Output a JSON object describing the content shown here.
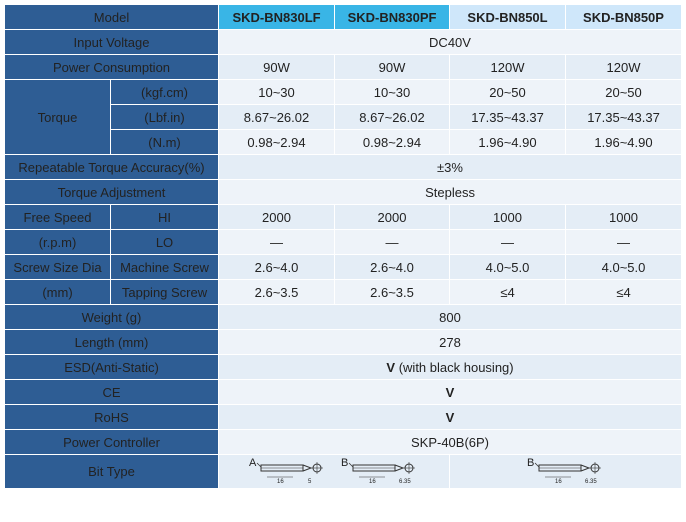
{
  "models": [
    "SKD-BN830LF",
    "SKD-BN830PF",
    "SKD-BN850L",
    "SKD-BN850P"
  ],
  "labels": {
    "model": "Model",
    "input_voltage": "Input Voltage",
    "power_consumption": "Power Consumption",
    "torque": "Torque",
    "torque_kgf": "(kgf.cm)",
    "torque_lbf": "(Lbf.in)",
    "torque_nm": "(N.m)",
    "accuracy": "Repeatable Torque Accuracy(%)",
    "adjustment": "Torque Adjustment",
    "free_speed": "Free Speed",
    "rpm": "(r.p.m)",
    "hi": "HI",
    "lo": "LO",
    "screw_size": "Screw Size Dia",
    "mm": "(mm)",
    "machine_screw": "Machine Screw",
    "tapping_screw": "Tapping Screw",
    "weight": "Weight (g)",
    "length": "Length (mm)",
    "esd": "ESD(Anti-Static)",
    "ce": "CE",
    "rohs": "RoHS",
    "power_controller": "Power Controller",
    "bit_type": "Bit Type"
  },
  "values": {
    "input_voltage": "DC40V",
    "power": [
      "90W",
      "90W",
      "120W",
      "120W"
    ],
    "torque_kgf": [
      "10~30",
      "10~30",
      "20~50",
      "20~50"
    ],
    "torque_lbf": [
      "8.67~26.02",
      "8.67~26.02",
      "17.35~43.37",
      "17.35~43.37"
    ],
    "torque_nm": [
      "0.98~2.94",
      "0.98~2.94",
      "1.96~4.90",
      "1.96~4.90"
    ],
    "accuracy": "±3%",
    "adjustment": "Stepless",
    "speed_hi": [
      "2000",
      "2000",
      "1000",
      "1000"
    ],
    "speed_lo": [
      "—",
      "—",
      "—",
      "—"
    ],
    "machine_screw": [
      "2.6~4.0",
      "2.6~4.0",
      "4.0~5.0",
      "4.0~5.0"
    ],
    "tapping_screw": [
      "2.6~3.5",
      "2.6~3.5",
      "≤4",
      "≤4"
    ],
    "weight": "800",
    "length": "278",
    "esd_mark": "V",
    "esd_note": "(with black housing)",
    "ce": "V",
    "rohs": "V",
    "power_controller": "SKP-40B(6P)"
  },
  "bits": [
    {
      "letter": "A",
      "len": "16",
      "dia": "5"
    },
    {
      "letter": "B",
      "len": "16",
      "dia": "6.35"
    },
    {
      "letter": "B",
      "len": "16",
      "dia": "6.35"
    }
  ],
  "colors": {
    "header": "#2e5d94",
    "cyan": "#39b5e6",
    "pale": "#cfe7fa"
  }
}
